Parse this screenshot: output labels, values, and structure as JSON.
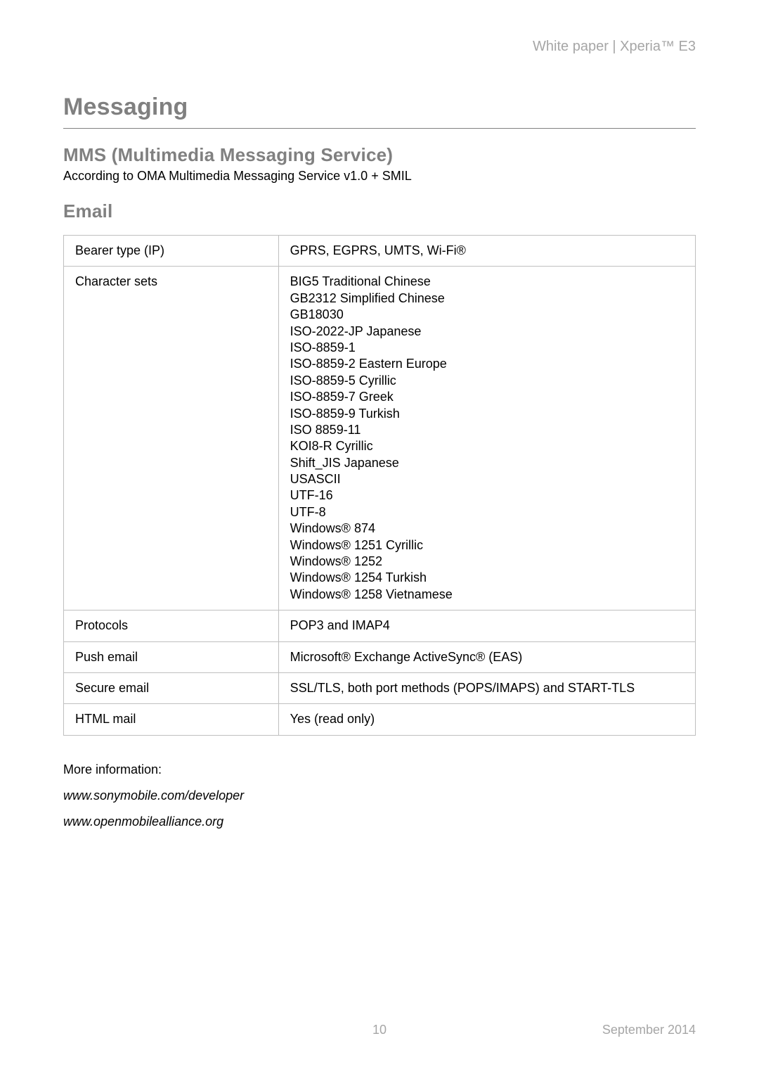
{
  "header": {
    "right": "White paper | Xperia™ E3"
  },
  "h1": "Messaging",
  "mms": {
    "heading": "MMS (Multimedia Messaging Service)",
    "subtitle": "According to OMA Multimedia Messaging Service v1.0 + SMIL"
  },
  "email": {
    "heading": "Email",
    "rows": [
      {
        "label": "Bearer type (IP)",
        "value": "GPRS, EGPRS, UMTS, Wi-Fi®"
      },
      {
        "label": "Character sets",
        "lines": [
          "BIG5 Traditional Chinese",
          "GB2312 Simplified Chinese",
          "GB18030",
          "ISO-2022-JP Japanese",
          "ISO-8859-1",
          "ISO-8859-2 Eastern Europe",
          "ISO-8859-5 Cyrillic",
          "ISO-8859-7 Greek",
          "ISO-8859-9 Turkish",
          "ISO 8859-11",
          "KOI8-R Cyrillic",
          "Shift_JIS Japanese",
          "USASCII",
          "UTF-16",
          "UTF-8",
          "Windows® 874",
          "Windows® 1251 Cyrillic",
          "Windows® 1252",
          "Windows® 1254 Turkish",
          "Windows® 1258 Vietnamese"
        ]
      },
      {
        "label": "Protocols",
        "value": "POP3 and IMAP4"
      },
      {
        "label": "Push email",
        "value": "Microsoft® Exchange ActiveSync® (EAS)"
      },
      {
        "label": "Secure email",
        "value": "SSL/TLS, both port methods (POPS/IMAPS) and START-TLS"
      },
      {
        "label": "HTML mail",
        "value": "Yes (read only)"
      }
    ]
  },
  "more": {
    "title": "More information:",
    "link1": "www.sonymobile.com/developer",
    "link2": "www.openmobilealliance.org"
  },
  "footer": {
    "page": "10",
    "date": "September 2014"
  },
  "colors": {
    "gray_heading": "#808080",
    "gray_light": "#a6a6a6",
    "border": "#bfbfbf",
    "text": "#000000",
    "bg": "#ffffff"
  },
  "typography": {
    "body_fontsize": 18,
    "h1_fontsize": 34,
    "h2_fontsize": 26,
    "header_fontsize": 20
  }
}
